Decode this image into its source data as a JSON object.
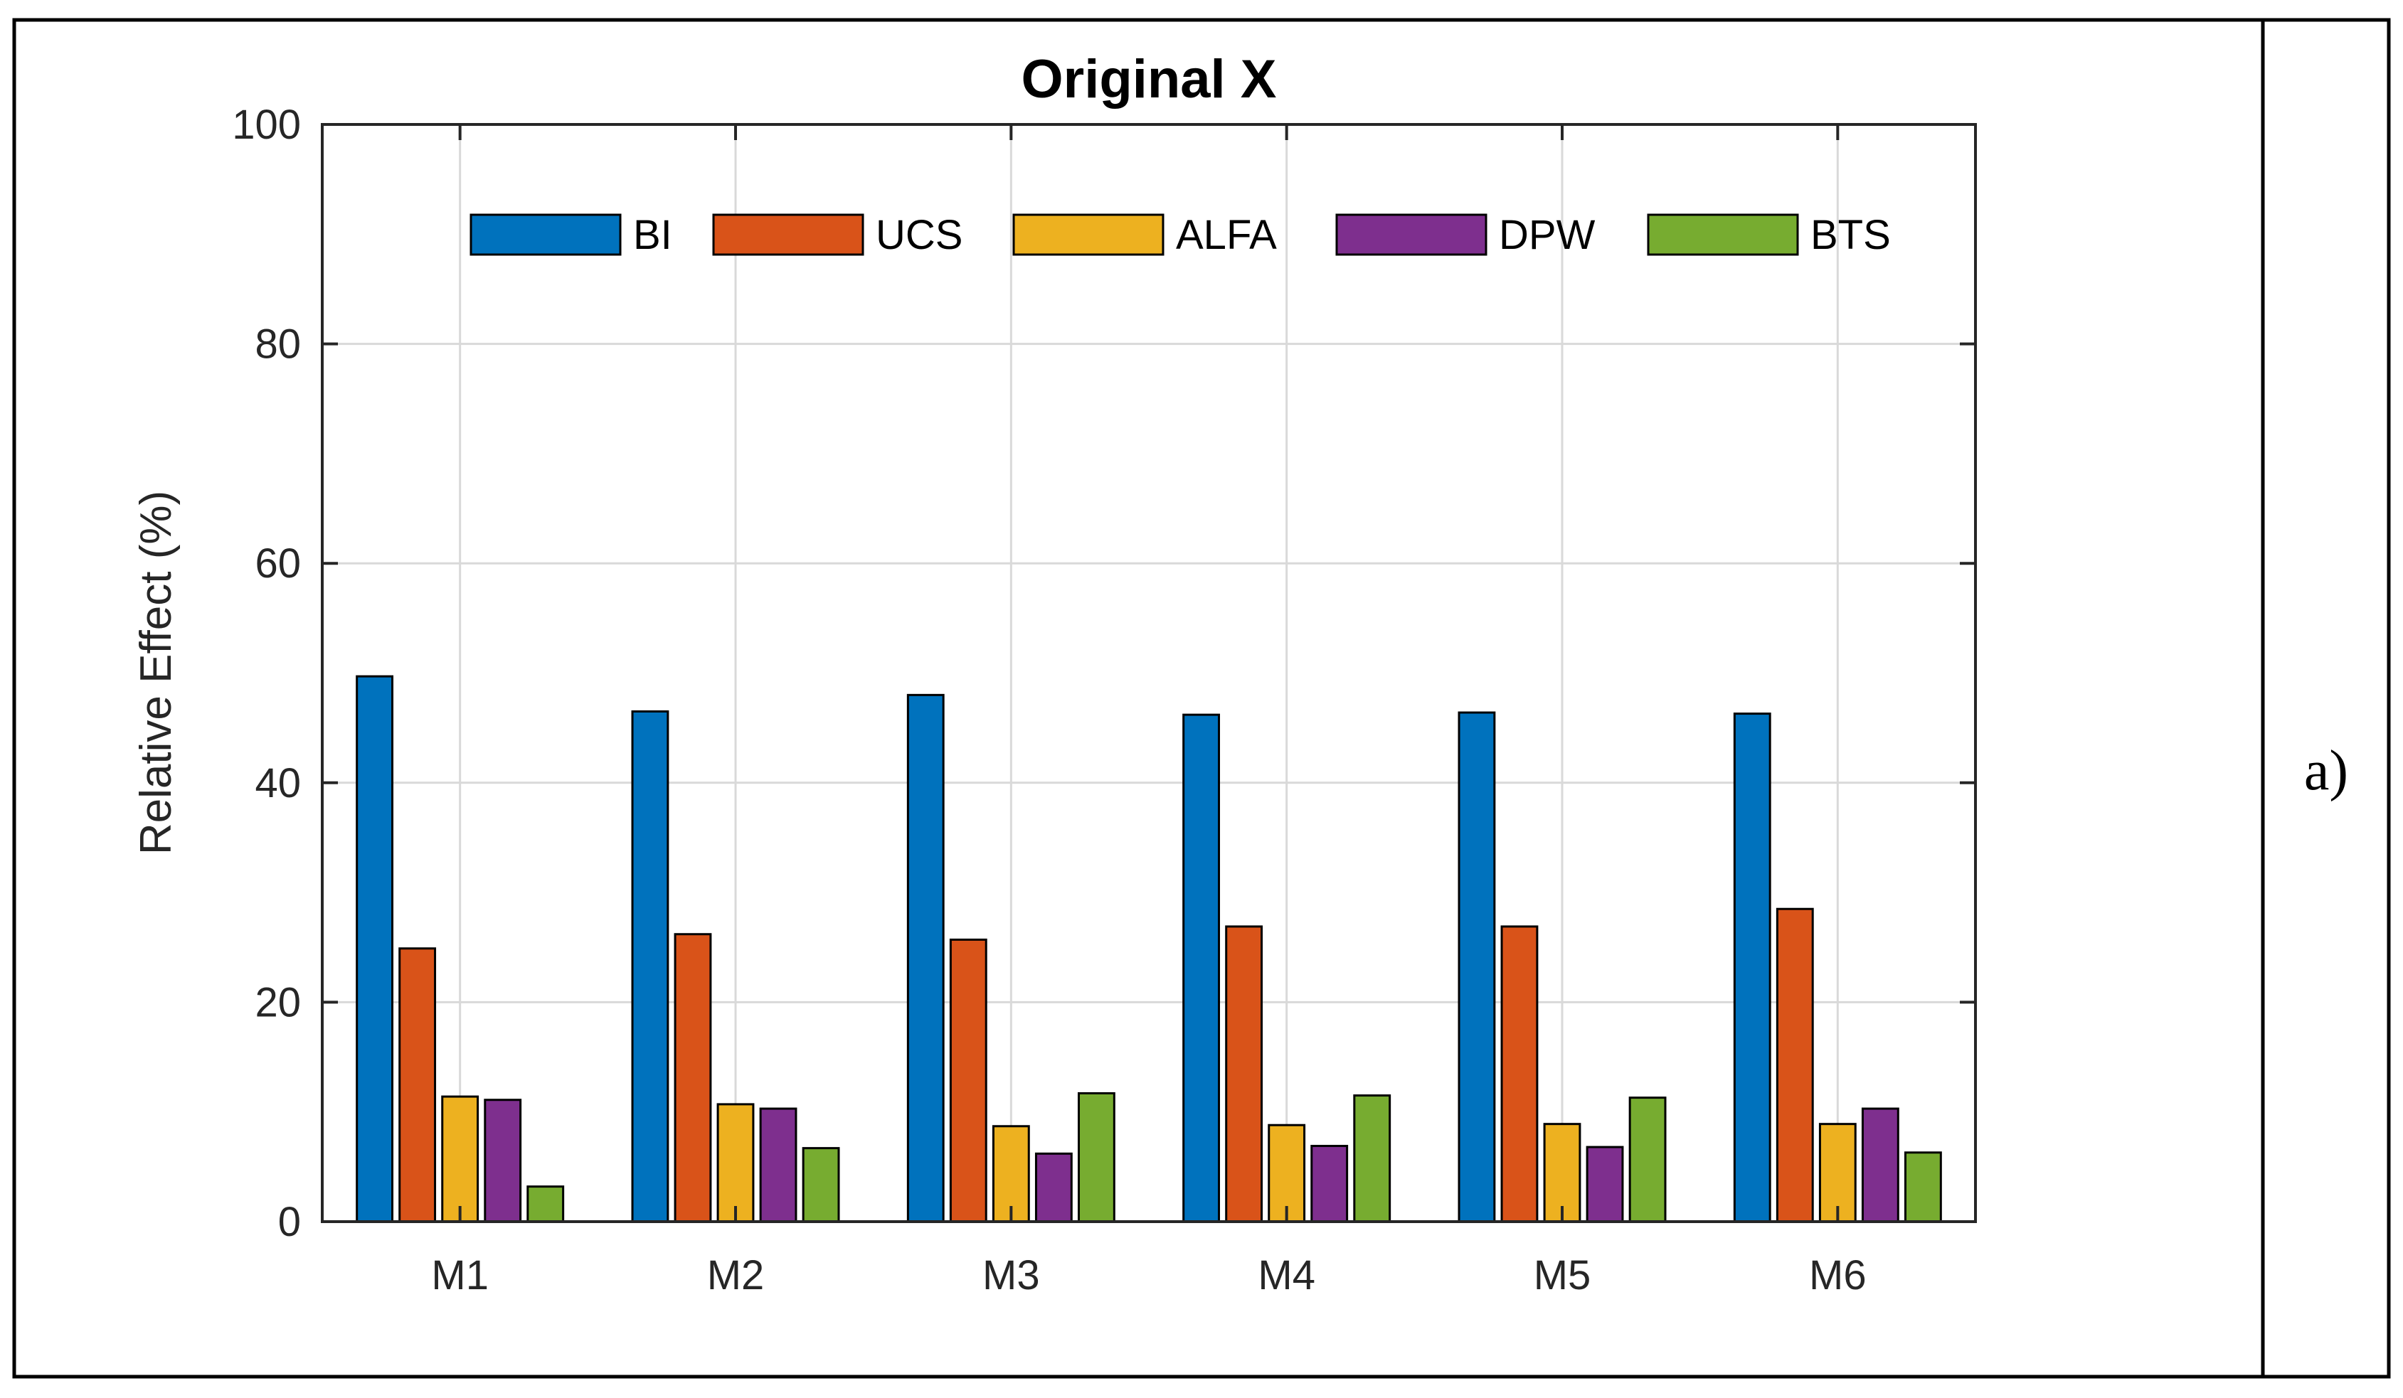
{
  "panel_label": "a)",
  "chart_data": {
    "type": "bar",
    "title": "Original X",
    "xlabel": "",
    "ylabel": "Relative Effect (%)",
    "ylim": [
      0,
      100
    ],
    "yticks": [
      0,
      20,
      40,
      60,
      80,
      100
    ],
    "grid": true,
    "legend_position": "top",
    "categories": [
      "M1",
      "M2",
      "M3",
      "M4",
      "M5",
      "M6"
    ],
    "series": [
      {
        "name": "BI",
        "color": "#0072BD",
        "values": [
          49.7,
          46.5,
          48.0,
          46.2,
          46.4,
          46.3
        ]
      },
      {
        "name": "UCS",
        "color": "#D95319",
        "values": [
          24.9,
          26.2,
          25.7,
          26.9,
          26.9,
          28.5
        ]
      },
      {
        "name": "ALFA",
        "color": "#EDB120",
        "values": [
          11.4,
          10.7,
          8.7,
          8.8,
          8.9,
          8.9
        ]
      },
      {
        "name": "DPW",
        "color": "#7E2F8E",
        "values": [
          11.1,
          10.3,
          6.2,
          6.9,
          6.8,
          10.3
        ]
      },
      {
        "name": "BTS",
        "color": "#77AC30",
        "values": [
          3.2,
          6.7,
          11.7,
          11.5,
          11.3,
          6.3
        ]
      }
    ]
  }
}
